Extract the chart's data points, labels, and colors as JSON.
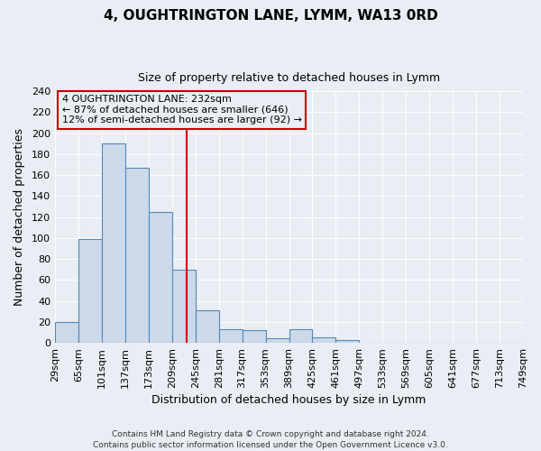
{
  "title": "4, OUGHTRINGTON LANE, LYMM, WA13 0RD",
  "subtitle": "Size of property relative to detached houses in Lymm",
  "xlabel": "Distribution of detached houses by size in Lymm",
  "ylabel": "Number of detached properties",
  "bin_edges": [
    29,
    65,
    101,
    137,
    173,
    209,
    245,
    281,
    317,
    353,
    389,
    425,
    461,
    497,
    533,
    569,
    605,
    641,
    677,
    713,
    749
  ],
  "bin_values": [
    20,
    99,
    190,
    167,
    125,
    70,
    31,
    13,
    12,
    4,
    13,
    5,
    3,
    0,
    0,
    0,
    0,
    0,
    0,
    0
  ],
  "bar_facecolor": "#ccd9e8",
  "bar_edgecolor": "#5588bb",
  "vline_x": 232,
  "vline_color": "#cc0000",
  "annotation_line1": "4 OUGHTRINGTON LANE: 232sqm",
  "annotation_line2": "← 87% of detached houses are smaller (646)",
  "annotation_line3": "12% of semi-detached houses are larger (92) →",
  "ylim": [
    0,
    240
  ],
  "yticks": [
    0,
    20,
    40,
    60,
    80,
    100,
    120,
    140,
    160,
    180,
    200,
    220,
    240
  ],
  "footnote": "Contains HM Land Registry data © Crown copyright and database right 2024.\nContains public sector information licensed under the Open Government Licence v3.0.",
  "bg_color": "#e8eef4",
  "grid_color": "#ffffff",
  "tick_labels": [
    "29sqm",
    "65sqm",
    "101sqm",
    "137sqm",
    "173sqm",
    "209sqm",
    "245sqm",
    "281sqm",
    "317sqm",
    "353sqm",
    "389sqm",
    "425sqm",
    "461sqm",
    "497sqm",
    "533sqm",
    "569sqm",
    "605sqm",
    "641sqm",
    "677sqm",
    "713sqm",
    "749sqm"
  ]
}
